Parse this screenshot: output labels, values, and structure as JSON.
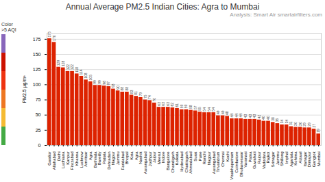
{
  "chart_data": {
    "type": "bar",
    "title": "Annual Average PM2.5 Indian Cities: Agra to Mumbai",
    "subtitle": "Analysis: Smart Air smartairfilters.com",
    "ylabel": "PM2.5 μg/m³",
    "categories": [
      "Gwalior",
      "Allahabad",
      "Delhi",
      "Ludhiana",
      "Kanpur",
      "Firozabad",
      "Khanna",
      "Lucknow",
      "Amritsar",
      "Agra",
      "Bathinda",
      "Bareilly",
      "Patiala",
      "Dehradun",
      "Nagpur",
      "Jammu",
      "Faridabad",
      "Bhopal",
      "Kota",
      "Agra",
      "Nashik",
      "Aurangabad",
      "Jodhpur",
      "Jaipur",
      "Meerut",
      "Indore",
      "Bangalore",
      "Chandigarh",
      "Kolkata",
      "Hyderabad",
      "Chattisgarh",
      "Ahmedabad",
      "Surat",
      "Pune",
      "Ranchi",
      "Nagpur",
      "Aurangabad",
      "Trivandrum",
      "Chennai",
      "Kochi",
      "Visakhapatnam",
      "Coimbatore",
      "Bhubaneswar",
      "Varanasi",
      "Patna",
      "Guwahati",
      "Raipur",
      "Vadodara",
      "Rajkot",
      "Srinagar",
      "Jammu",
      "Shillong",
      "Imphal",
      "Agartala",
      "Kohima",
      "Aizawl",
      "Itanagar",
      "Dimapur",
      "Gangtok",
      "Mumbai"
    ],
    "values": [
      176,
      170,
      129,
      128,
      122,
      122,
      118,
      114,
      108,
      105,
      99,
      99,
      98,
      97,
      93,
      90,
      88,
      88,
      83,
      81,
      79,
      75,
      74,
      70,
      63,
      63,
      63,
      62,
      61,
      59,
      59,
      58,
      57,
      55,
      54,
      54,
      54,
      49,
      49,
      48,
      44,
      44,
      44,
      43,
      43,
      43,
      42,
      40,
      40,
      38,
      36,
      34,
      34,
      31,
      30,
      30,
      29,
      29,
      27,
      19
    ],
    "color": "#dd2200",
    "ylim": [
      0,
      185
    ],
    "yticks": [
      0,
      25,
      50,
      75,
      100,
      125,
      150,
      175
    ],
    "grid": true,
    "data_labels": true,
    "annotations": [
      {
        "text": "Color\n>5 AQI",
        "colors": [
          "#8866bb",
          "#cc1100",
          "#ee3311",
          "#ee7722",
          "#f5bb33",
          "#44aa44"
        ]
      }
    ]
  }
}
